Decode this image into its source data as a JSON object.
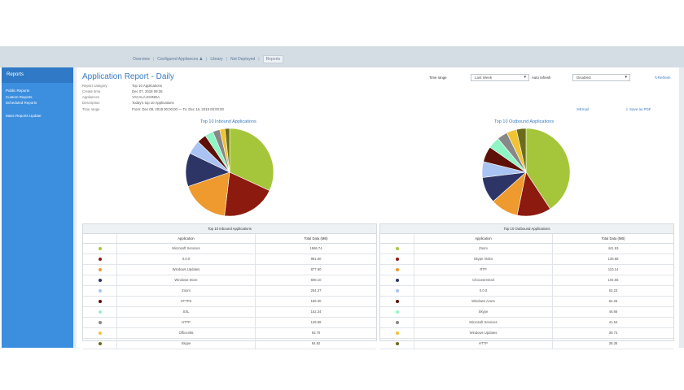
{
  "topnav": {
    "items": [
      "Overview",
      "Configured Appliances",
      "Library",
      "Not Deployed",
      "Reports"
    ],
    "active": "Reports"
  },
  "sidebar": {
    "header": "Reports",
    "items": [
      "Public Reports",
      "Custom Reports",
      "Scheduled Reports",
      "Mass Reports Update"
    ]
  },
  "report": {
    "title": "Application Report - Daily",
    "meta": [
      {
        "label": "Report category",
        "value": "Top 10 Applications"
      },
      {
        "label": "Create time",
        "value": "Dec 07, 2018 09:25"
      },
      {
        "label": "Appliances",
        "value": "YACALA-EXINDA"
      },
      {
        "label": "Description",
        "value": "Today's top 10 Applications"
      },
      {
        "label": "Time range",
        "value": "From: Dec 09, 2019 00:00:00 — To: Dec 16, 2019 00:00:00"
      }
    ]
  },
  "controls": {
    "time_range_label": "Time range",
    "time_range_value": "Last Week",
    "auto_refresh_label": "Auto refresh",
    "auto_refresh_value": "Disabled",
    "refresh_label": "Refresh",
    "email_label": "Email",
    "save_pdf_label": "Save as PDF"
  },
  "inbound": {
    "chart_title": "Top 10 Inbound Applications",
    "table_caption": "Top 10 Inbound Applications",
    "col_app": "Application",
    "col_total": "Total Data (MB)",
    "rows": [
      {
        "app": "Microsoft Services",
        "total": "1566.74",
        "color": "#a5c63b"
      },
      {
        "app": "0.0.0",
        "total": "981.60",
        "color": "#8c1a0e"
      },
      {
        "app": "Windows Updates",
        "total": "877.90",
        "color": "#ee9a2e"
      },
      {
        "app": "Windows Store",
        "total": "608.10",
        "color": "#2d3566"
      },
      {
        "app": "Zoom",
        "total": "254.37",
        "color": "#a9c4f2"
      },
      {
        "app": "HTTPS",
        "total": "166.30",
        "color": "#5c1007"
      },
      {
        "app": "SSL",
        "total": "152.34",
        "color": "#8ef5c4"
      },
      {
        "app": "HTTP",
        "total": "126.86",
        "color": "#888888"
      },
      {
        "app": "Office365",
        "total": "93.70",
        "color": "#f1c232"
      },
      {
        "app": "Skype",
        "total": "84.82",
        "color": "#6b6b1c"
      }
    ]
  },
  "outbound": {
    "chart_title": "Top 10 Outbound Applications",
    "table_caption": "Top 10 Outbound Applications",
    "col_app": "Application",
    "col_total": "Total Data (MB)",
    "rows": [
      {
        "app": "Zoom",
        "total": "441.53",
        "color": "#a5c63b"
      },
      {
        "app": "Skype Video",
        "total": "135.68",
        "color": "#8c1a0e"
      },
      {
        "app": "RTP",
        "total": "110.14",
        "color": "#ee9a2e"
      },
      {
        "app": "Chocoservtool",
        "total": "104.56",
        "color": "#2d3566"
      },
      {
        "app": "0.0.0",
        "total": "63.23",
        "color": "#a9c4f2"
      },
      {
        "app": "Windows Azure",
        "total": "62.26",
        "color": "#5c1007"
      },
      {
        "app": "Skype",
        "total": "46.66",
        "color": "#8ef5c4"
      },
      {
        "app": "Microsoft Services",
        "total": "41.54",
        "color": "#888888"
      },
      {
        "app": "Windows Updates",
        "total": "39.73",
        "color": "#f1c232"
      },
      {
        "app": "HTTP",
        "total": "38.36",
        "color": "#6b6b1c"
      }
    ]
  },
  "chart_data": [
    {
      "type": "pie",
      "title": "Top 10 Inbound Applications",
      "categories": [
        "Microsoft Services",
        "0.0.0",
        "Windows Updates",
        "Windows Store",
        "Zoom",
        "HTTPS",
        "SSL",
        "HTTP",
        "Office365",
        "Skype"
      ],
      "values": [
        1566.74,
        981.6,
        877.9,
        608.1,
        254.37,
        166.3,
        152.34,
        126.86,
        93.7,
        84.82
      ]
    },
    {
      "type": "pie",
      "title": "Top 10 Outbound Applications",
      "categories": [
        "Zoom",
        "Skype Video",
        "RTP",
        "Chocoservtool",
        "0.0.0",
        "Windows Azure",
        "Skype",
        "Microsoft Services",
        "Windows Updates",
        "HTTP"
      ],
      "values": [
        441.53,
        135.68,
        110.14,
        104.56,
        63.23,
        62.26,
        46.66,
        41.54,
        39.73,
        38.36
      ]
    }
  ]
}
